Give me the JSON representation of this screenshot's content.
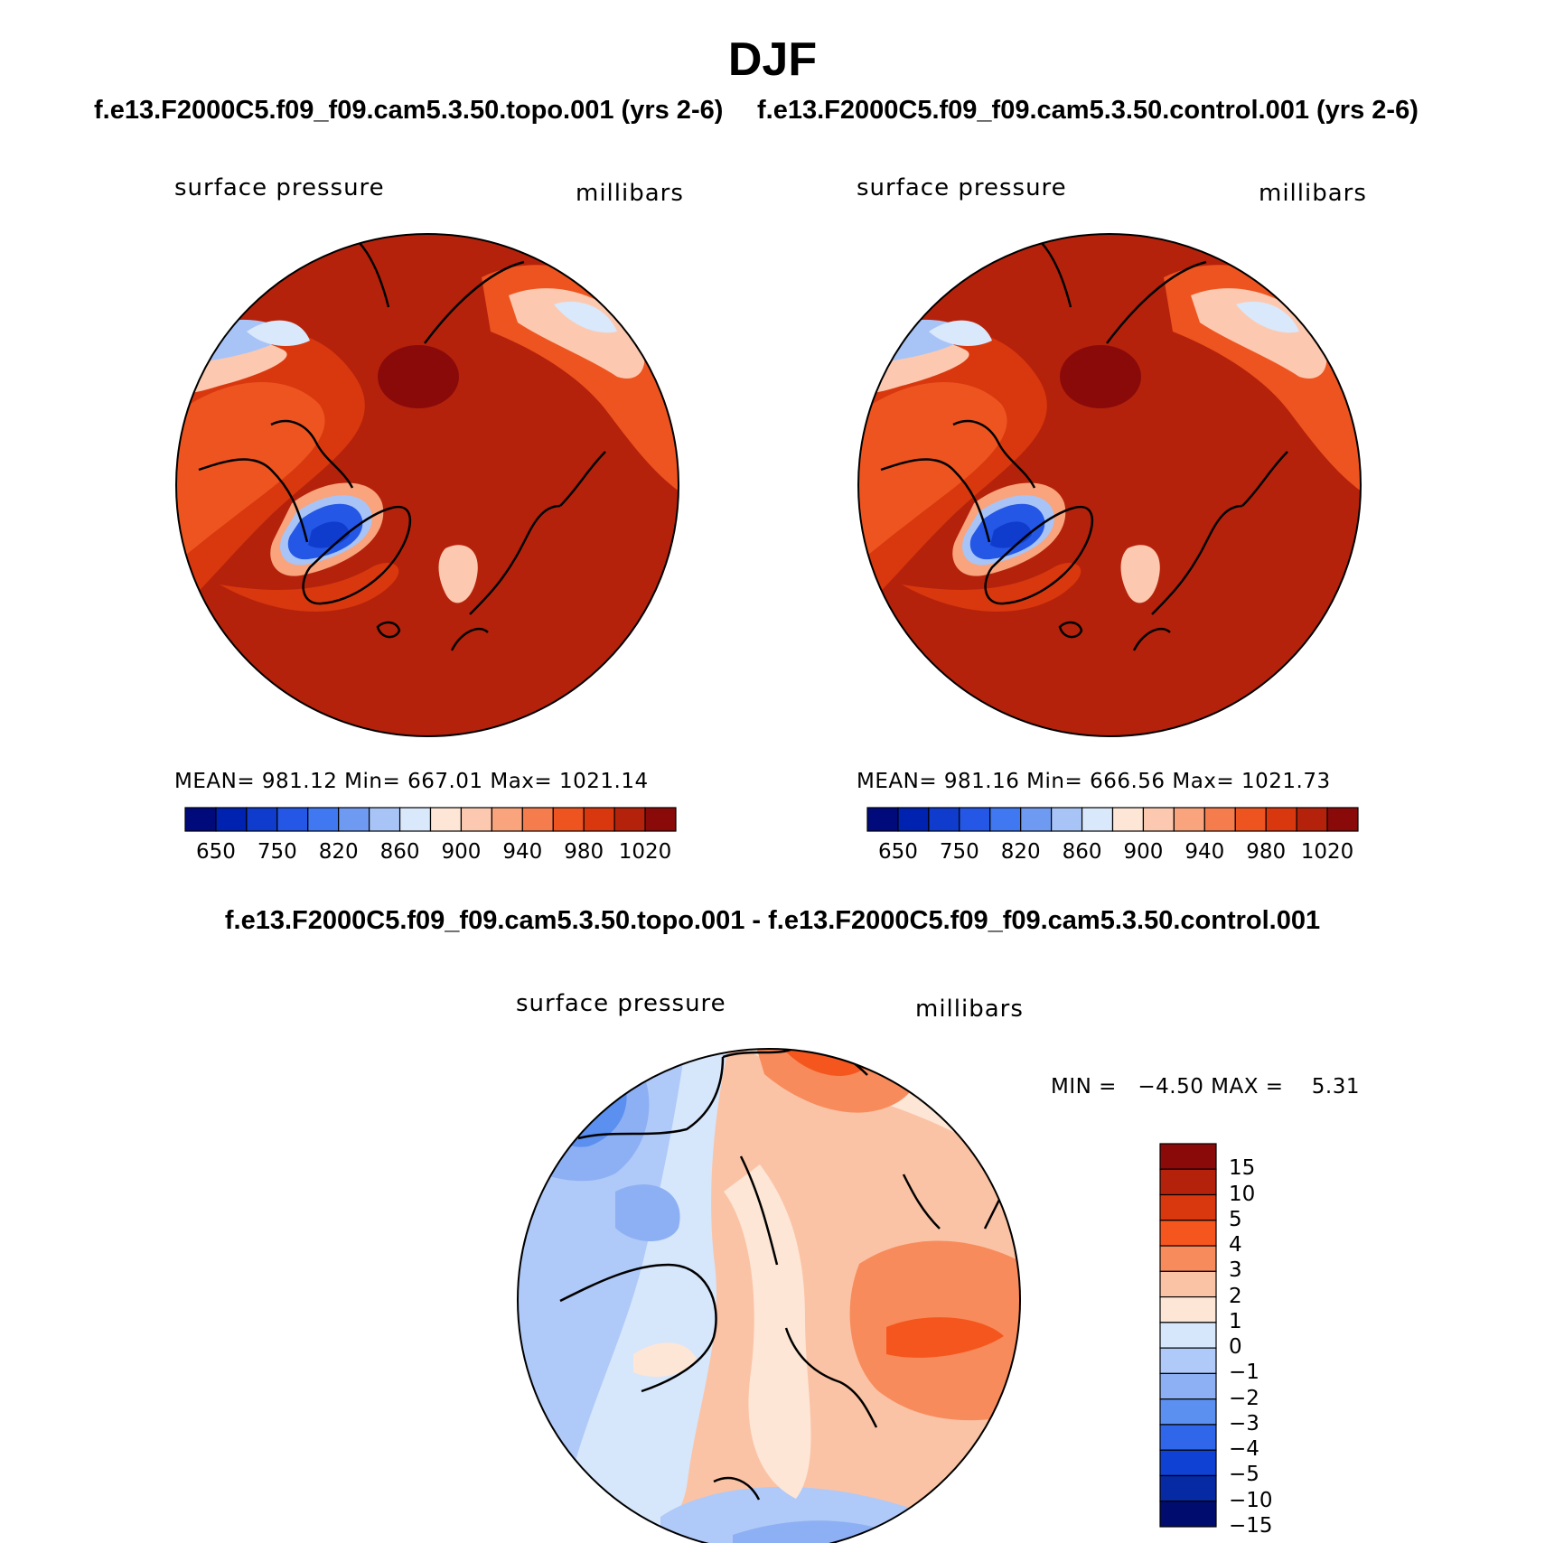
{
  "figure": {
    "title": "DJF",
    "case_a": "f.e13.F2000C5.f09_f09.cam5.3.50.topo.001 (yrs 2-6)",
    "case_b": "f.e13.F2000C5.f09_f09.cam5.3.50.control.001 (yrs 2-6)",
    "diff_title": "f.e13.F2000C5.f09_f09.cam5.3.50.topo.001 - f.e13.F2000C5.f09_f09.cam5.3.50.control.001"
  },
  "panels": [
    {
      "variable": "surface pressure",
      "units": "millibars",
      "stats": "MEAN= 981.12   Min= 667.01   Max= 1021.14"
    },
    {
      "variable": "surface pressure",
      "units": "millibars",
      "stats": "MEAN= 981.16   Min= 666.56   Max= 1021.73"
    }
  ],
  "abs_colorbar": {
    "colors": [
      "#000a7a",
      "#0022b0",
      "#0f3ccc",
      "#2457e6",
      "#3f78f0",
      "#6f9af2",
      "#a8c4f6",
      "#d9e8fb",
      "#fde6d6",
      "#fcc9b0",
      "#f9a47c",
      "#f57c4d",
      "#ee5420",
      "#d9380e",
      "#b5220b",
      "#8a0a0a"
    ],
    "ticks": [
      "650",
      "750",
      "820",
      "860",
      "900",
      "940",
      "980",
      "1020"
    ]
  },
  "diff_panel": {
    "variable": "surface pressure",
    "units": "millibars",
    "stats": "MIN =   −4.50 MAX =    5.31",
    "colorbar_colors": [
      "#8a0a0a",
      "#b5220b",
      "#d9380e",
      "#f5561e",
      "#f88b5c",
      "#fbc3a5",
      "#fde6d6",
      "#d6e6fb",
      "#afc9f8",
      "#8db0f4",
      "#5b8ff0",
      "#2f66ea",
      "#0f42d4",
      "#0629a4",
      "#000d6e"
    ],
    "colorbar_ticks": [
      "15",
      "10",
      "5",
      "4",
      "3",
      "2",
      "1",
      "0",
      "−1",
      "−2",
      "−3",
      "−4",
      "−5",
      "−10",
      "−15"
    ]
  }
}
